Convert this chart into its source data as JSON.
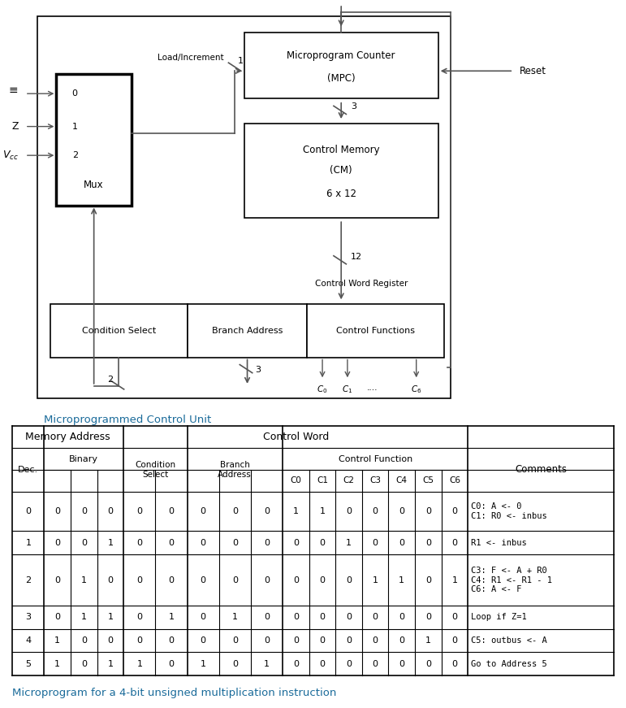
{
  "title_diagram": "Microprogrammed Control Unit",
  "title_table": "Microprogram for a 4-bit unsigned multiplication instruction",
  "title_color": "#1a6b9a",
  "bg_color": "#ffffff",
  "comments_list": [
    "C0: A <- 0\nC1: R0 <- inbus",
    "R1 <- inbus",
    "C3: F <- A + R0\nC4: R1 <- R1 - 1\nC6: A <- F",
    "Loop if Z=1",
    "C5: outbus <- A",
    "Go to Address 5"
  ],
  "table_rows": [
    [
      0,
      "0",
      "0",
      "0",
      "0",
      "0",
      "0",
      "0",
      "0",
      "1",
      "1",
      "0",
      "0",
      "0",
      "0",
      "0"
    ],
    [
      1,
      "0",
      "0",
      "1",
      "0",
      "0",
      "0",
      "0",
      "0",
      "0",
      "0",
      "1",
      "0",
      "0",
      "0",
      "0"
    ],
    [
      2,
      "0",
      "1",
      "0",
      "0",
      "0",
      "0",
      "0",
      "0",
      "0",
      "0",
      "0",
      "1",
      "1",
      "0",
      "1"
    ],
    [
      3,
      "0",
      "1",
      "1",
      "0",
      "1",
      "0",
      "1",
      "0",
      "0",
      "0",
      "0",
      "0",
      "0",
      "0",
      "0"
    ],
    [
      4,
      "1",
      "0",
      "0",
      "0",
      "0",
      "0",
      "0",
      "0",
      "0",
      "0",
      "0",
      "0",
      "0",
      "1",
      "0"
    ],
    [
      5,
      "1",
      "0",
      "1",
      "1",
      "0",
      "1",
      "0",
      "1",
      "0",
      "0",
      "0",
      "0",
      "0",
      "0",
      "0"
    ]
  ],
  "col_units": [
    1.2,
    1.0,
    1.0,
    1.0,
    1.2,
    1.2,
    1.2,
    1.2,
    1.2,
    1.0,
    1.0,
    1.0,
    1.0,
    1.0,
    1.0,
    1.0,
    5.5
  ],
  "cf_labels": [
    "C0",
    "C1",
    "C2",
    "C3",
    "C4",
    "C5",
    "C6"
  ]
}
